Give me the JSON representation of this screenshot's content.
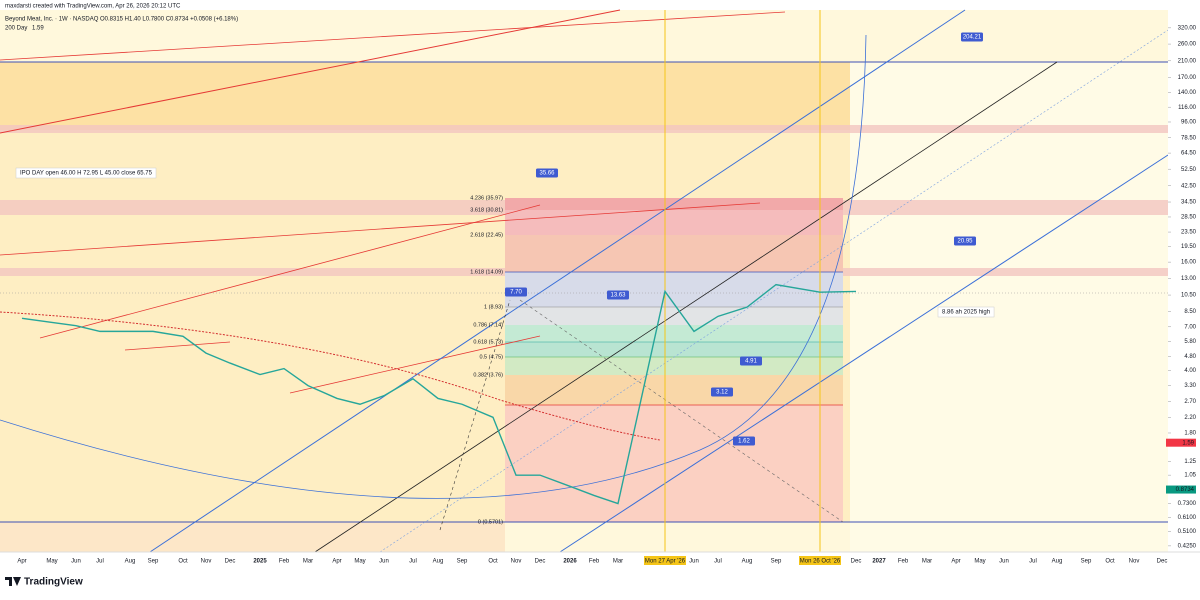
{
  "chart_data": {
    "type": "line",
    "attribution": "maxdarsti created with TradingView.com, Apr 26, 2026 20:12 UTC",
    "title": "Beyond Meat, Inc. · 1W · NASDAQ",
    "ohlc": "O0.8315 H1.40 L0.7800 C0.8734 +0.0508 (+6.18%)",
    "indicator": "200 Day",
    "indicator_value": "1.59",
    "brand": "TradingView",
    "log_scale": true,
    "color": "#26a69a",
    "categories": [
      "Apr",
      "May",
      "Jun",
      "Jul",
      "Aug",
      "Sep",
      "Oct",
      "Nov",
      "Dec",
      "2025",
      "Feb",
      "Mar",
      "Apr",
      "May",
      "Jun",
      "Jul",
      "Aug",
      "Sep",
      "Oct",
      "Nov",
      "Dec",
      "2026",
      "Feb",
      "Mar",
      "Mon 27 Apr '26",
      "Jun",
      "Jul",
      "Aug",
      "Sep",
      "Mon 26 Oct '26",
      "Dec",
      "2027",
      "Feb",
      "Mar",
      "Apr",
      "May",
      "Jun",
      "Jul",
      "Aug",
      "Sep",
      "Oct",
      "Nov",
      "Dec"
    ],
    "values": [
      7.8,
      7.4,
      7.1,
      6.6,
      6.6,
      6.6,
      6.2,
      5.0,
      4.4,
      3.8,
      4.1,
      3.3,
      2.8,
      2.6,
      2.9,
      3.6,
      2.8,
      2.6,
      2.2,
      1.05,
      1.05,
      0.91,
      0.81,
      0.73,
      11,
      6.6,
      8.0,
      9.0,
      12,
      10.9,
      11,
      null,
      null,
      null,
      null,
      null,
      null,
      null,
      null,
      null,
      null,
      null,
      null
    ],
    "ylim": [
      0.393,
      402
    ],
    "yticks": [
      {
        "value": 320,
        "label": "320.00"
      },
      {
        "value": 260,
        "label": "260.00"
      },
      {
        "value": 210,
        "label": "210.00"
      },
      {
        "value": 170,
        "label": "170.00"
      },
      {
        "value": 140,
        "label": "140.00"
      },
      {
        "value": 116,
        "label": "116.00"
      },
      {
        "value": 96,
        "label": "96.00"
      },
      {
        "value": 78.5,
        "label": "78.50"
      },
      {
        "value": 64.5,
        "label": "64.50"
      },
      {
        "value": 52.5,
        "label": "52.50"
      },
      {
        "value": 42.5,
        "label": "42.50"
      },
      {
        "value": 34.5,
        "label": "34.50"
      },
      {
        "value": 28.5,
        "label": "28.50"
      },
      {
        "value": 23.5,
        "label": "23.50"
      },
      {
        "value": 19.5,
        "label": "19.50"
      },
      {
        "value": 16,
        "label": "16.00"
      },
      {
        "value": 13,
        "label": "13.00"
      },
      {
        "value": 10.5,
        "label": "10.50"
      },
      {
        "value": 8.5,
        "label": "8.50"
      },
      {
        "value": 7,
        "label": "7.00"
      },
      {
        "value": 5.8,
        "label": "5.80"
      },
      {
        "value": 4.8,
        "label": "4.80"
      },
      {
        "value": 4,
        "label": "4.00"
      },
      {
        "value": 3.3,
        "label": "3.30"
      },
      {
        "value": 2.7,
        "label": "2.70"
      },
      {
        "value": 2.2,
        "label": "2.20"
      },
      {
        "value": 1.8,
        "label": "1.80"
      },
      {
        "value": 1.25,
        "label": "1.25"
      },
      {
        "value": 1.05,
        "label": "1.05"
      },
      {
        "value": 0.73,
        "label": "0.7300"
      },
      {
        "value": 0.61,
        "label": "0.6100"
      },
      {
        "value": 0.51,
        "label": "0.5100"
      },
      {
        "value": 0.425,
        "label": "0.4250"
      }
    ],
    "markers": [
      {
        "value": 1.59,
        "color": "#f23645"
      },
      {
        "value": 0.8734,
        "color": "#089981"
      }
    ],
    "callouts": [
      "35.66",
      "204.21",
      "20.95",
      "13.63",
      "7.70",
      "4.91",
      "3.12",
      "1.62"
    ],
    "notes": [
      "IPO DAY open 46.00 H 72.95 L 45.00 close 65.75",
      "8.86 ah 2025 high"
    ],
    "fib_labels": [
      "4.236 (35.97)",
      "3.618 (30.81)",
      "2.618 (22.45)",
      "1.618 (14.09)",
      "1 (8.93)",
      "0.786 (7.14)",
      "0.618 (5.73)",
      "0.5 (4.75)",
      "0.382 (3.76)",
      "0 (0.5701)"
    ]
  }
}
